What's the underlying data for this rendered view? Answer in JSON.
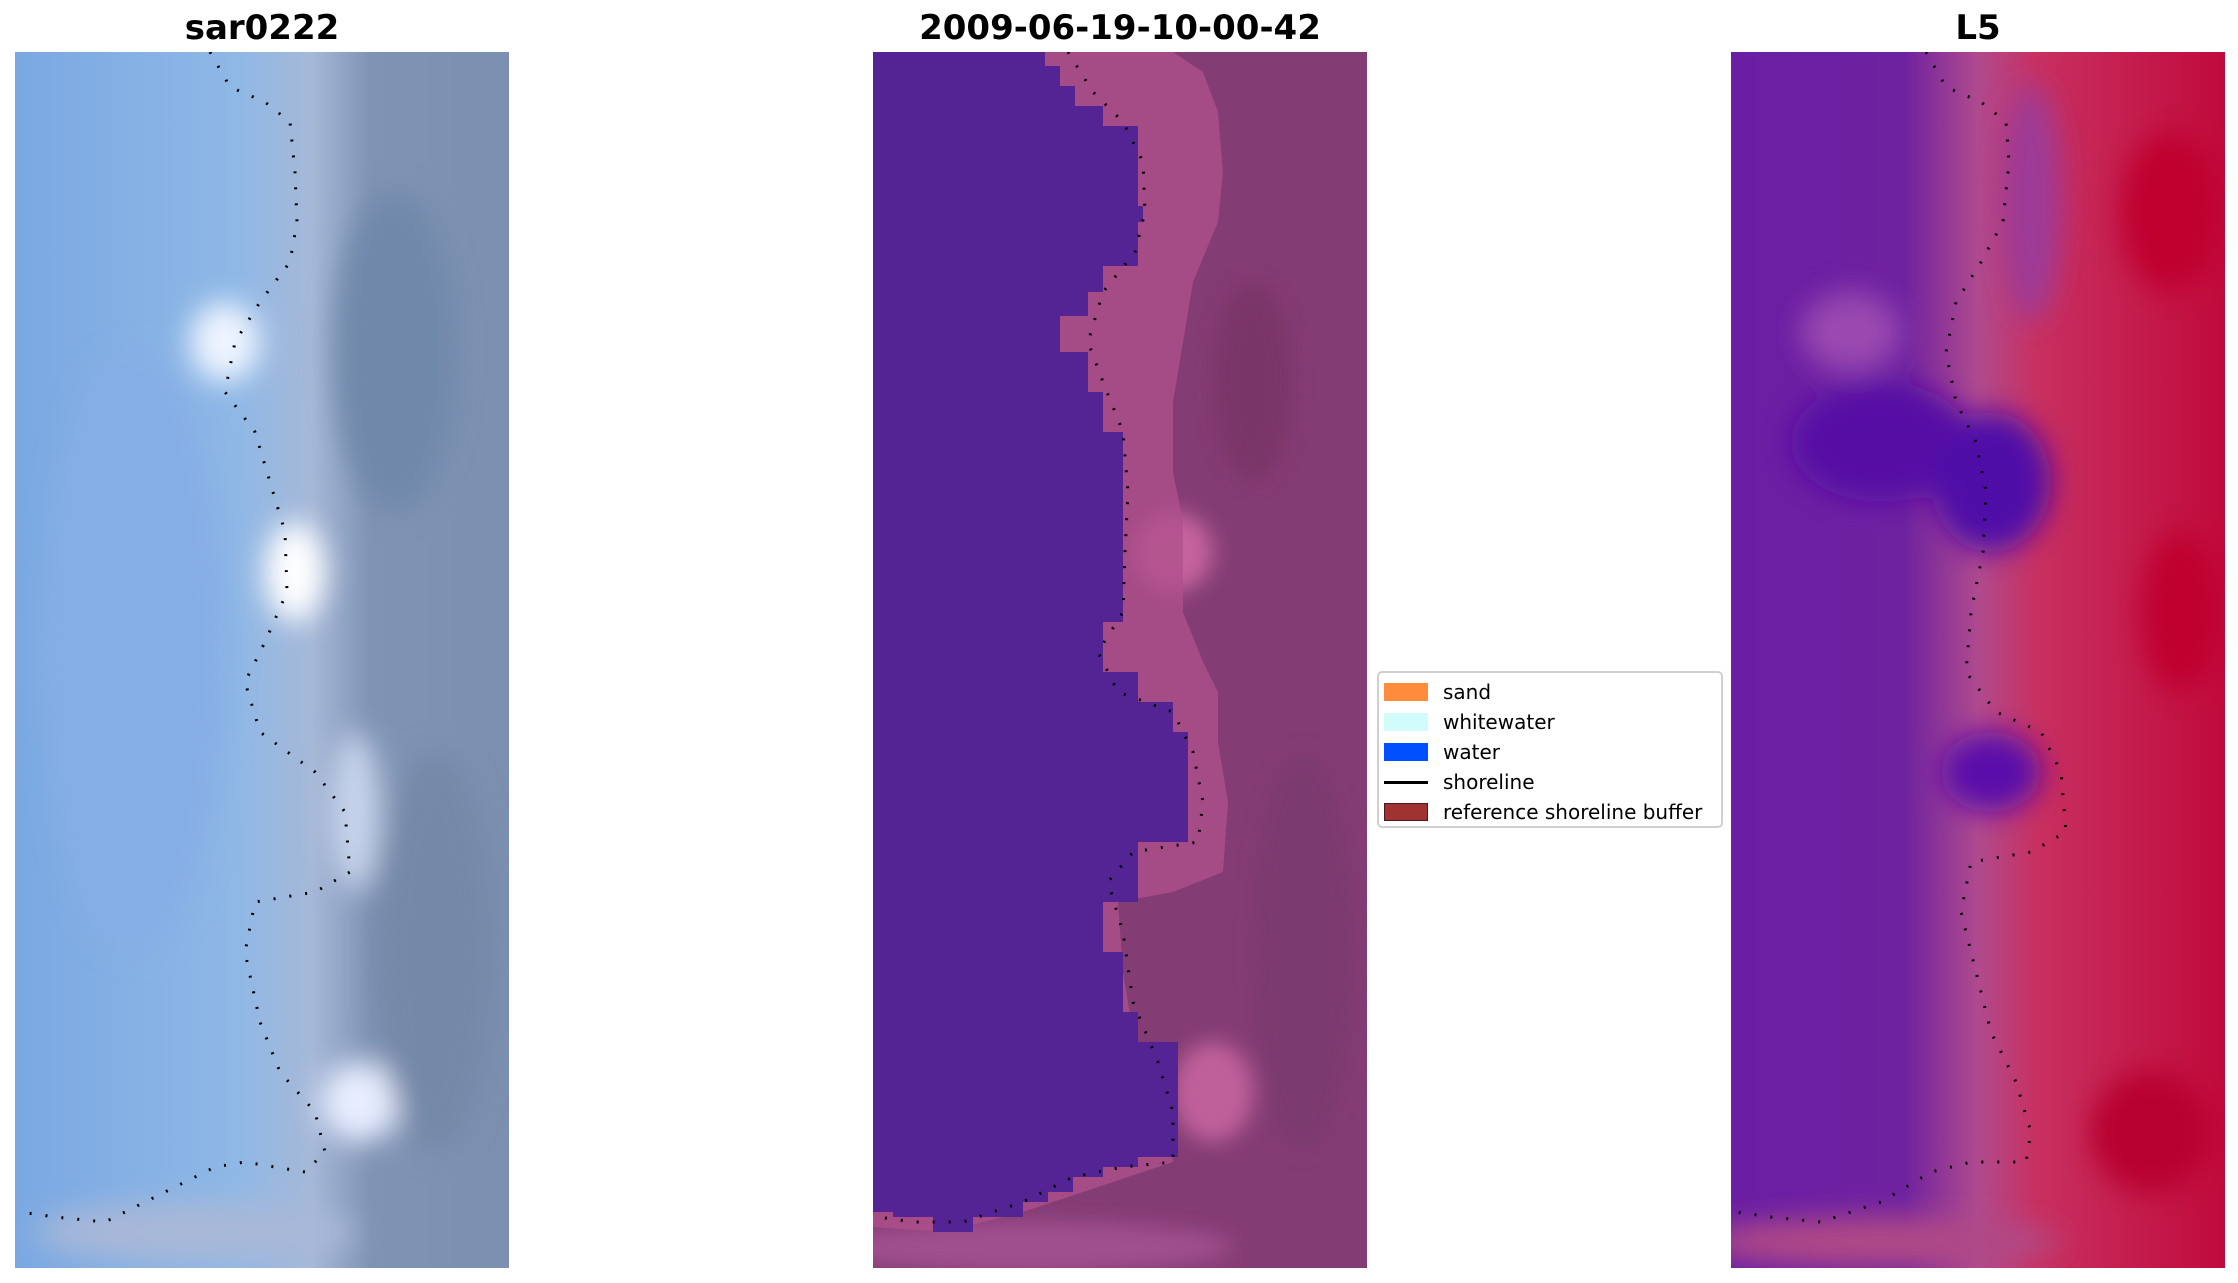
{
  "panels": [
    {
      "title": "sar0222"
    },
    {
      "title": "2009-06-19-10-00-42"
    },
    {
      "title": "L5"
    }
  ],
  "legend": {
    "items": [
      {
        "label": "sand",
        "color": "#ff8c3c",
        "kind": "patch"
      },
      {
        "label": "whitewater",
        "color": "#d2fcfc",
        "kind": "patch"
      },
      {
        "label": "water",
        "color": "#0050ff",
        "kind": "patch"
      },
      {
        "label": "shoreline",
        "color": "#000000",
        "kind": "line"
      },
      {
        "label": "reference shoreline buffer",
        "color": "#a03232",
        "kind": "patch",
        "edge": "#4a1a1a"
      }
    ]
  },
  "colors": {
    "water_class": "#542495",
    "buffer_tint": "#b0508c",
    "land_class": "#843c74",
    "index_low": "#5a0ea8",
    "index_high": "#c2063a"
  }
}
